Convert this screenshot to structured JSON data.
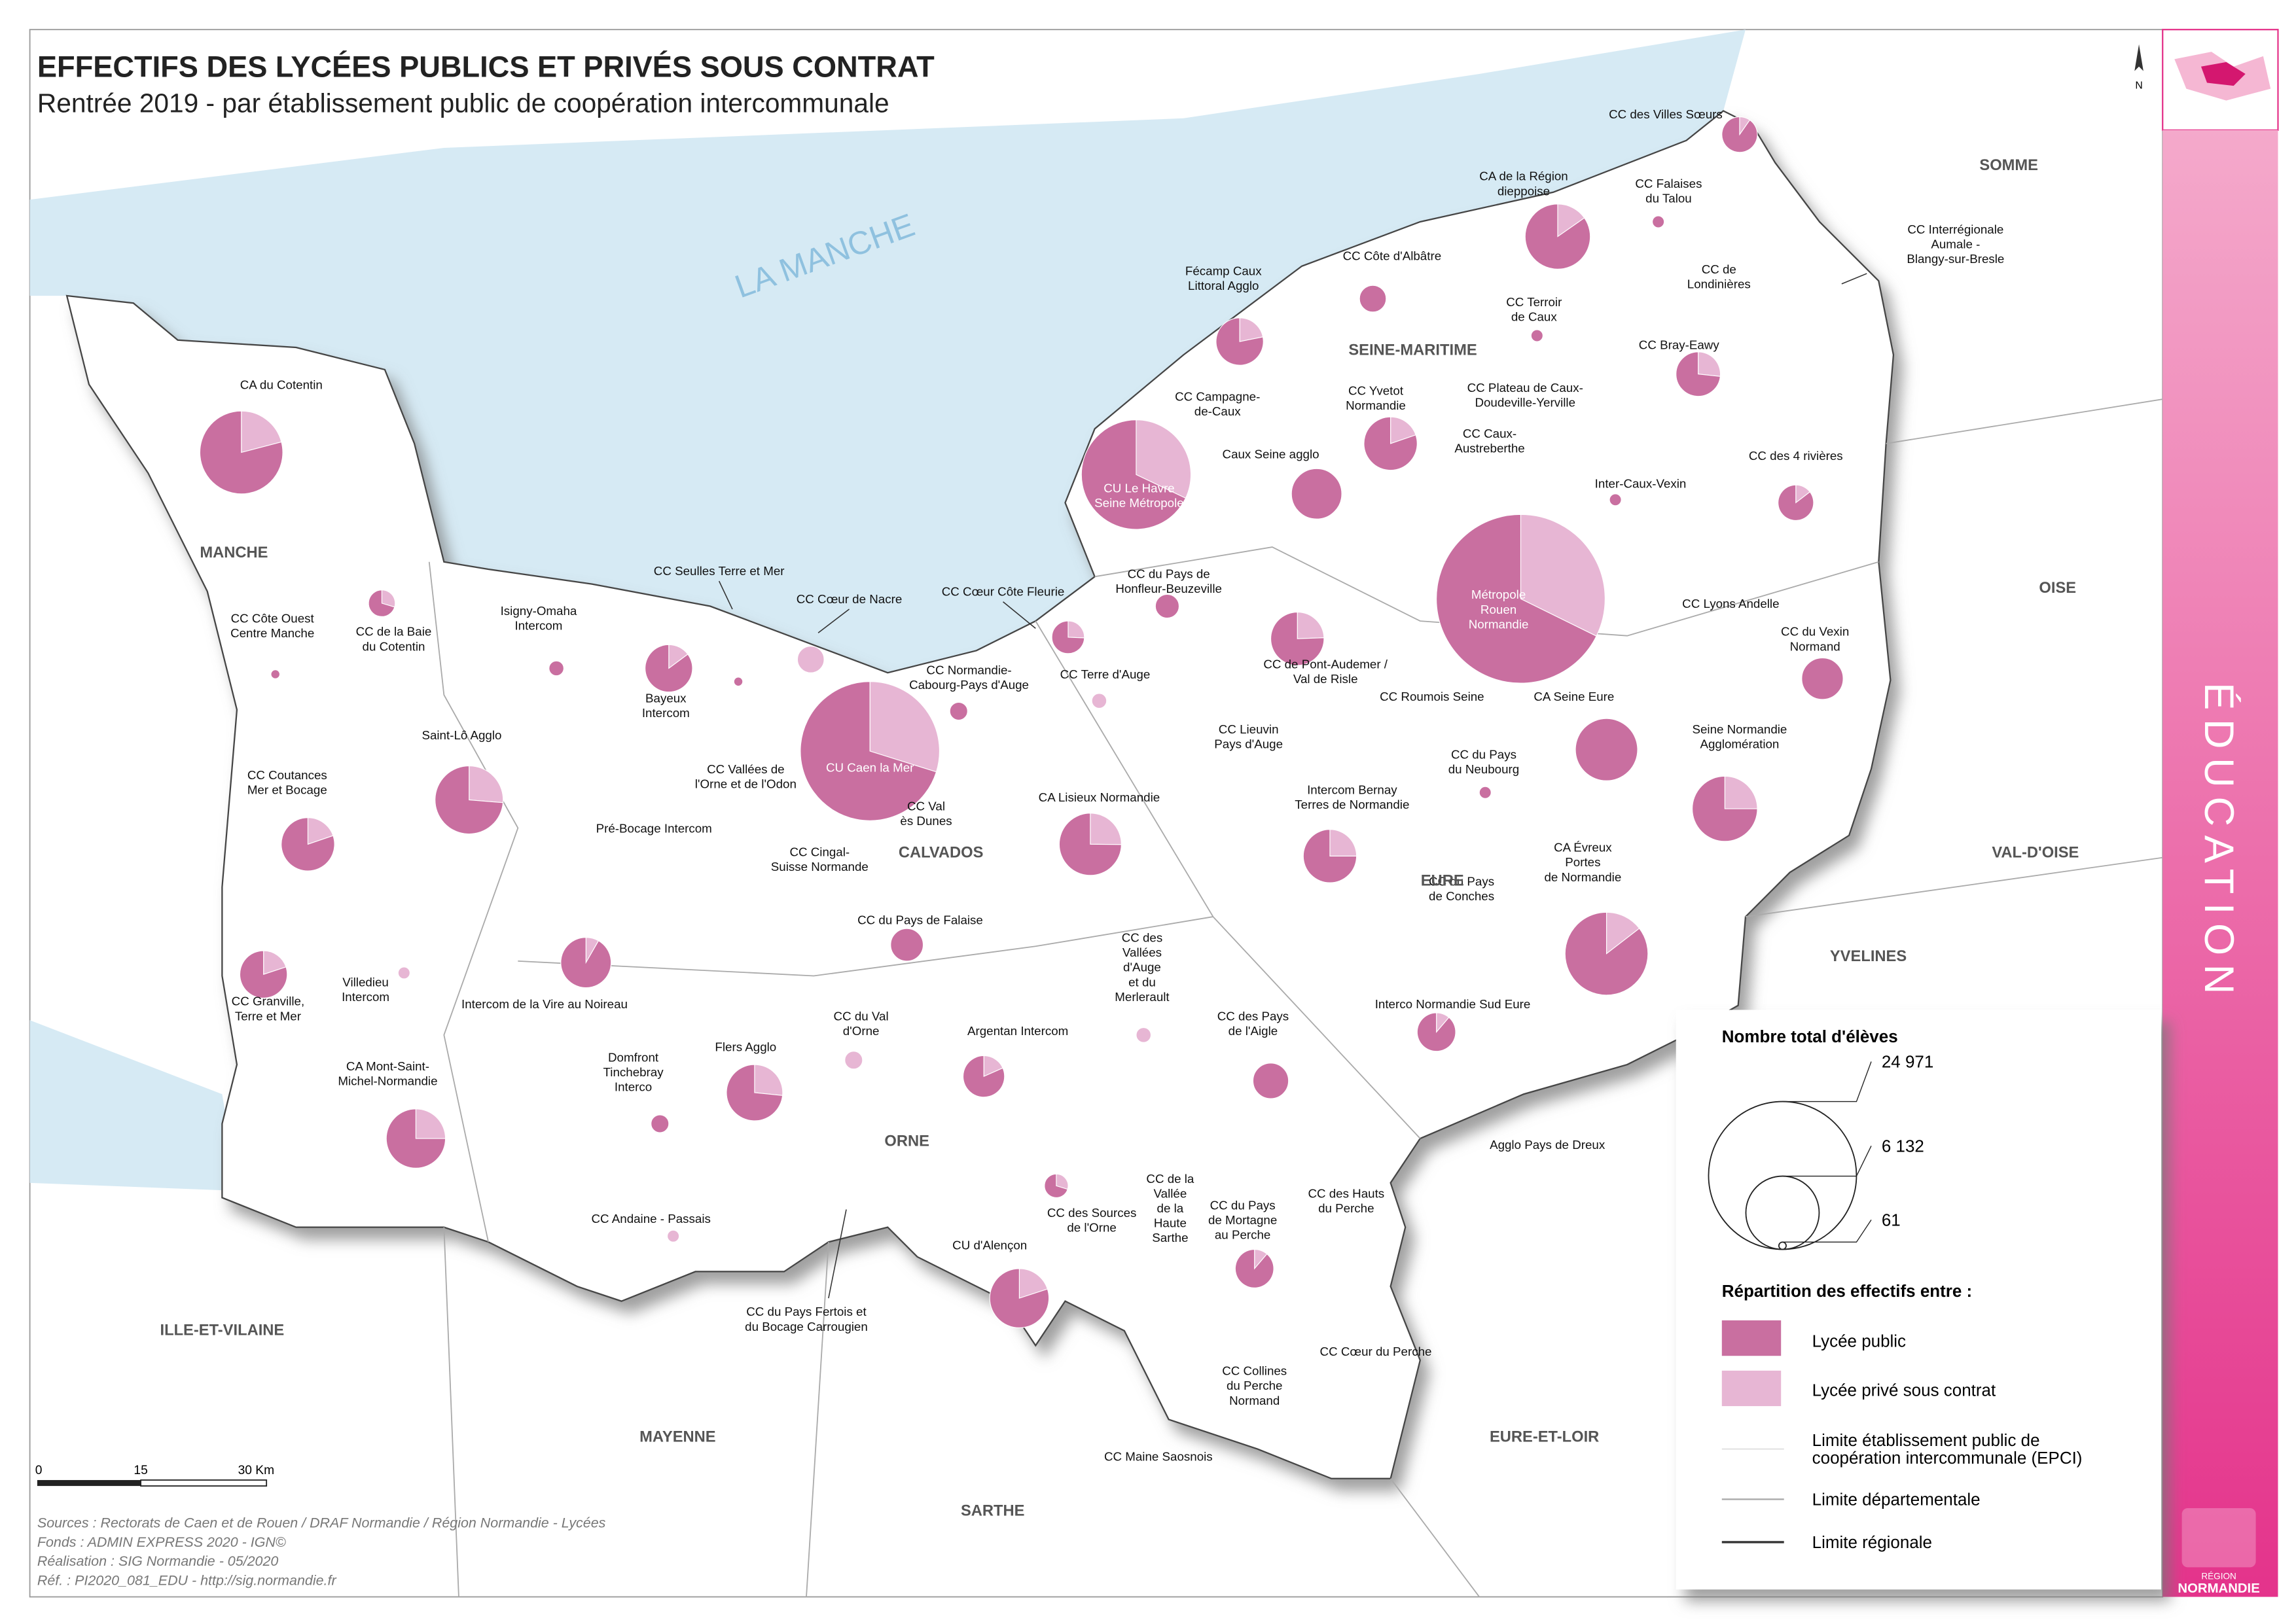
{
  "header": {
    "title": "EFFECTIFS DES LYCÉES PUBLICS ET PRIVÉS SOUS CONTRAT",
    "subtitle": "Rentrée 2019 - par établissement public de coopération intercommunale"
  },
  "theme": "ÉDUCATION",
  "sea": "LA MANCHE",
  "colors": {
    "public": "#c96fa0",
    "prive": "#e7b6d4"
  },
  "departments": [
    "MANCHE",
    "SEINE-MARITIME",
    "CALVADOS",
    "EURE",
    "ORNE",
    "SOMME",
    "OISE",
    "VAL-D'OISE",
    "YVELINES",
    "ILLE-ET-VILAINE",
    "MAYENNE",
    "EURE-ET-LOIR",
    "SARTHE"
  ],
  "epcis": [
    {
      "label": [
        "CC des Villes Sœurs"
      ],
      "public": 1300,
      "prive": 140
    },
    {
      "label": [
        "CA de la Région",
        "dieppoise"
      ],
      "public": 4100,
      "prive": 740
    },
    {
      "label": [
        "CC Falaises",
        "du Talou"
      ],
      "public": 160,
      "prive": 0
    },
    {
      "label": [
        "CC Interrégionale",
        "Aumale -",
        "Blangy-sur-Bresle"
      ]
    },
    {
      "label": [
        "CC de",
        "Londinières"
      ]
    },
    {
      "label": [
        "CC Côte d'Albâtre"
      ],
      "public": 810,
      "prive": 0
    },
    {
      "label": [
        "Fécamp Caux",
        "Littoral Agglo"
      ],
      "public": 2000,
      "prive": 560
    },
    {
      "label": [
        "CC Terroir",
        "de Caux"
      ],
      "public": 160,
      "prive": 0
    },
    {
      "label": [
        "CC Bray-Eawy"
      ],
      "public": 1650,
      "prive": 600
    },
    {
      "label": [
        "CC Campagne-",
        "de-Caux"
      ]
    },
    {
      "label": [
        "CC Yvetot",
        "Normandie"
      ],
      "public": 2600,
      "prive": 640
    },
    {
      "label": [
        "CC Plateau de Caux-",
        "Doudeville-Yerville"
      ]
    },
    {
      "label": [
        "CC Caux-",
        "Austreberthe"
      ]
    },
    {
      "label": [
        "Caux Seine agglo"
      ],
      "public": 2890,
      "prive": 0
    },
    {
      "label": [
        "CC des 4 rivières"
      ],
      "public": 1230,
      "prive": 210
    },
    {
      "label": [
        "Inter-Caux-Vexin"
      ],
      "public": 160,
      "prive": 0
    },
    {
      "label": [
        "CU Le Havre",
        "Seine Métropole"
      ],
      "public": 9300,
      "prive": 4390
    },
    {
      "label": [
        "Métropole",
        "Rouen",
        "Normandie"
      ],
      "public": 22000,
      "prive": 10490
    },
    {
      "label": [
        "CC du Pays de",
        "Honfleur-Beuzeville"
      ],
      "public": 640,
      "prive": 0
    },
    {
      "label": [
        "CC Seulles Terre et Mer"
      ],
      "public": 90,
      "prive": 0
    },
    {
      "label": [
        "CC Cœur de Nacre"
      ],
      "public": 0,
      "prive": 810
    },
    {
      "label": [
        "CC Cœur Côte Fleurie"
      ],
      "public": 900,
      "prive": 310
    },
    {
      "label": [
        "Isigny-Omaha",
        "Intercom"
      ],
      "public": 250,
      "prive": 0
    },
    {
      "label": [
        "CC Côte Ouest",
        "Centre Manche"
      ],
      "public": 90,
      "prive": 0
    },
    {
      "label": [
        "CC de la Baie",
        "du Cotentin"
      ],
      "public": 570,
      "prive": 240
    },
    {
      "label": [
        "CC de Pont-Audemer /",
        "Val de Risle"
      ],
      "public": 2450,
      "prive": 790
    },
    {
      "label": [
        "Bayeux",
        "Intercom"
      ],
      "public": 2180,
      "prive": 380
    },
    {
      "label": [
        "CC Normandie-",
        "Cabourg-Pays d'Auge"
      ],
      "public": 360,
      "prive": 0
    },
    {
      "label": [
        "CC Terre d'Auge"
      ],
      "public": 0,
      "prive": 250
    },
    {
      "label": [
        "CC Roumois Seine"
      ]
    },
    {
      "label": [
        "CA Seine Eure"
      ],
      "public": 4410,
      "prive": 0
    },
    {
      "label": [
        "CC Lyons Andelle"
      ]
    },
    {
      "label": [
        "CC du Vexin",
        "Normand"
      ],
      "public": 1960,
      "prive": 0
    },
    {
      "label": [
        "CC Lieuvin",
        "Pays d'Auge"
      ]
    },
    {
      "label": [
        "CU Caen la Mer"
      ],
      "public": 15500,
      "prive": 6590
    },
    {
      "label": [
        "CC Vallées de",
        "l'Orne et de l'Odon"
      ]
    },
    {
      "label": [
        "CC du Pays",
        "du Neubourg"
      ],
      "public": 160,
      "prive": 0
    },
    {
      "label": [
        "Seine Normandie",
        "Agglomération"
      ],
      "public": 3630,
      "prive": 1210
    },
    {
      "label": [
        "CC Val",
        "ès Dunes"
      ]
    },
    {
      "label": [
        "Intercom Bernay",
        "Terres de Normandie"
      ],
      "public": 2430,
      "prive": 810
    },
    {
      "label": [
        "CA Lisieux Normandie"
      ],
      "public": 3300,
      "prive": 1110
    },
    {
      "label": [
        "Pré-Bocage Intercom"
      ]
    },
    {
      "label": [
        "CC Coutances",
        "Mer et Bocage"
      ],
      "public": 2600,
      "prive": 640
    },
    {
      "label": [
        "Saint-Lô Agglo"
      ],
      "public": 3900,
      "prive": 1390
    },
    {
      "label": [
        "CC Cingal-",
        "Suisse Normande"
      ]
    },
    {
      "label": [
        "CA Évreux",
        "Portes",
        "de Normandie"
      ],
      "public": 6700,
      "prive": 1140
    },
    {
      "label": [
        "CC du Pays de Falaise"
      ],
      "public": 1210,
      "prive": 0
    },
    {
      "label": [
        "CC du Pays",
        "de Conches"
      ]
    },
    {
      "label": [
        "CC des",
        "Vallées",
        "d'Auge",
        "et du",
        "Merlerault"
      ],
      "public": 0,
      "prive": 250
    },
    {
      "label": [
        "CC Granville,",
        "Terre et Mer"
      ],
      "public": 2050,
      "prive": 510
    },
    {
      "label": [
        "Villedieu",
        "Intercom"
      ],
      "public": 0,
      "prive": 160
    },
    {
      "label": [
        "Intercom de la Vire au Noireau"
      ],
      "public": 2650,
      "prive": 240
    },
    {
      "label": [
        "CC des Pays",
        "de l'Aigle"
      ],
      "public": 1440,
      "prive": 0
    },
    {
      "label": [
        "Interco Normandie Sud Eure"
      ],
      "public": 1500,
      "prive": 190
    },
    {
      "label": [
        "Argentan Intercom"
      ],
      "public": 1600,
      "prive": 360
    },
    {
      "label": [
        "CC du Val",
        "d'Orne"
      ],
      "public": 0,
      "prive": 360
    },
    {
      "label": [
        "Flers Agglo"
      ],
      "public": 2650,
      "prive": 960
    },
    {
      "label": [
        "Domfront",
        "Tinchebray",
        "Interco"
      ],
      "public": 360,
      "prive": 0
    },
    {
      "label": [
        "CA Mont-Saint-",
        "Michel-Normandie"
      ],
      "public": 3000,
      "prive": 1000
    },
    {
      "label": [
        "Agglo Pays de Dreux"
      ]
    },
    {
      "label": [
        "CC de la",
        "Vallée",
        "de la",
        "Haute",
        "Sarthe"
      ]
    },
    {
      "label": [
        "CC des Hauts",
        "du Perche"
      ]
    },
    {
      "label": [
        "CC du Pays",
        "de Mortagne",
        "au Perche"
      ],
      "public": 1500,
      "prive": 190
    },
    {
      "label": [
        "CC des Sources",
        "de l'Orne"
      ],
      "public": 450,
      "prive": 190
    },
    {
      "label": [
        "CC Andaine - Passais"
      ],
      "public": 0,
      "prive": 160
    },
    {
      "label": [
        "CU d'Alençon"
      ],
      "public": 3200,
      "prive": 800
    },
    {
      "label": [
        "CC du Pays Fertois et",
        "du Bocage Carrougien"
      ]
    },
    {
      "label": [
        "CC Cœur du Perche"
      ]
    },
    {
      "label": [
        "CC Collines",
        "du Perche",
        "Normand"
      ]
    },
    {
      "label": [
        "CC Maine Saosnois"
      ]
    },
    {
      "label": [
        "CA du Cotentin"
      ],
      "public": 6200,
      "prive": 1640
    }
  ],
  "legend": {
    "size_title": "Nombre total d'élèves",
    "sizes": [
      {
        "value": 24971,
        "label": "24 971"
      },
      {
        "value": 6132,
        "label": "6 132"
      },
      61
    ],
    "split_title": "Répartition des effectifs entre :",
    "public": "Lycée public",
    "prive": "Lycée privé sous contrat",
    "limits": [
      [
        "Limite établissement public de",
        "coopération intercommunale (EPCI)"
      ],
      [
        "Limite départementale"
      ],
      [
        "Limite régionale"
      ]
    ]
  },
  "scale_bar": {
    "ticks": [
      "0",
      "15",
      "30 Km"
    ]
  },
  "sources": [
    "Sources : Rectorats de Caen et de Rouen / DRAF Normandie / Région Normandie - Lycées",
    "Fonds : ADMIN EXPRESS 2020 - IGN©",
    "Réalisation : SIG Normandie - 05/2020",
    "Réf. : PI2020_081_EDU - http://sig.normandie.fr"
  ],
  "logo": [
    "RÉGION",
    "NORMANDIE"
  ]
}
